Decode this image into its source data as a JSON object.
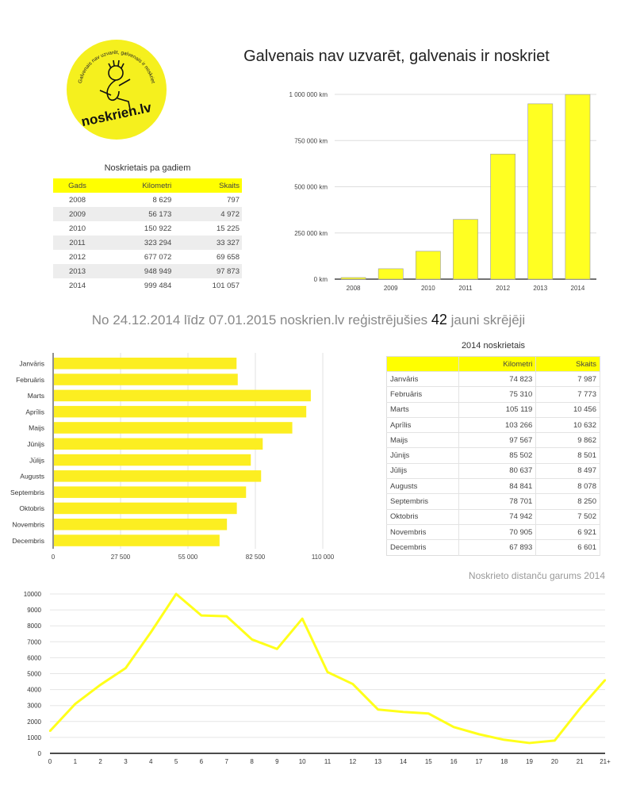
{
  "logo": {
    "text": "noskrien.lv",
    "ring_text": "Galvenais nav uzvarēt, galvenais ir noskriet"
  },
  "title": "Galvenais nav uzvarēt, galvenais ir noskriet",
  "subtitle": {
    "before": "No 24.12.2014 līdz 07.01.2015 noskrien.lv reģistrējušies",
    "count": "42",
    "after": "jauni skrējēji"
  },
  "yearly_table": {
    "title": "Noskrietais pa gadiem",
    "headers": [
      "Gads",
      "Kilometri",
      "Skaits"
    ],
    "rows": [
      [
        "2008",
        "8 629",
        "797"
      ],
      [
        "2009",
        "56 173",
        "4 972"
      ],
      [
        "2010",
        "150 922",
        "15 225"
      ],
      [
        "2011",
        "323 294",
        "33 327"
      ],
      [
        "2012",
        "677 072",
        "69 658"
      ],
      [
        "2013",
        "948 949",
        "97 873"
      ],
      [
        "2014",
        "999 484",
        "101 057"
      ]
    ]
  },
  "monthly_table": {
    "title": "2014 noskrietais",
    "headers": [
      "",
      "Kilometri",
      "Skaits"
    ],
    "rows": [
      [
        "Janvāris",
        "74 823",
        "7 987"
      ],
      [
        "Februāris",
        "75 310",
        "7 773"
      ],
      [
        "Marts",
        "105 119",
        "10 456"
      ],
      [
        "Aprīlis",
        "103 266",
        "10 632"
      ],
      [
        "Maijs",
        "97 567",
        "9 862"
      ],
      [
        "Jūnijs",
        "85 502",
        "8 501"
      ],
      [
        "Jūlijs",
        "80 637",
        "8 497"
      ],
      [
        "Augusts",
        "84 841",
        "8 078"
      ],
      [
        "Septembris",
        "78 701",
        "8 250"
      ],
      [
        "Oktobris",
        "74 942",
        "7 502"
      ],
      [
        "Novembris",
        "70 905",
        "6 921"
      ],
      [
        "Decembris",
        "67 893",
        "6 601"
      ]
    ]
  },
  "colors": {
    "accent": "#ffff00",
    "bar": "#fcee21",
    "line": "#ffff1a"
  },
  "chart_data": [
    {
      "type": "bar",
      "title": "",
      "categories": [
        "2008",
        "2009",
        "2010",
        "2011",
        "2012",
        "2013",
        "2014"
      ],
      "values": [
        8629,
        56173,
        150922,
        323294,
        677072,
        948949,
        999484
      ],
      "ylim": [
        0,
        1000000
      ],
      "yticks": [
        0,
        250000,
        500000,
        750000,
        1000000
      ],
      "ytick_labels": [
        "0 km",
        "250 000 km",
        "500 000 km",
        "750 000 km",
        "1 000 000 km"
      ],
      "grid": true
    },
    {
      "type": "bar",
      "orientation": "horizontal",
      "categories": [
        "Janvāris",
        "Februāris",
        "Marts",
        "Aprīlis",
        "Maijs",
        "Jūnijs",
        "Jūlijs",
        "Augusts",
        "Septembris",
        "Oktobris",
        "Novembris",
        "Decembris"
      ],
      "values": [
        74823,
        75310,
        105119,
        103266,
        97567,
        85502,
        80637,
        84841,
        78701,
        74942,
        70905,
        67893
      ],
      "xlim": [
        0,
        110000
      ],
      "xticks": [
        0,
        27500,
        55000,
        82500,
        110000
      ],
      "xtick_labels": [
        "0",
        "27 500",
        "55 000",
        "82 500",
        "110 000"
      ],
      "grid": true
    },
    {
      "type": "line",
      "title": "Noskrieto distanču garums 2014",
      "categories": [
        "0",
        "1",
        "2",
        "3",
        "4",
        "5",
        "6",
        "7",
        "8",
        "9",
        "10",
        "11",
        "12",
        "13",
        "14",
        "15",
        "16",
        "17",
        "18",
        "19",
        "20",
        "21",
        "21+"
      ],
      "values": [
        1400,
        3100,
        4300,
        5350,
        7600,
        10000,
        8650,
        8600,
        7150,
        6550,
        8450,
        5100,
        4350,
        2750,
        2600,
        2500,
        1650,
        1200,
        850,
        650,
        800,
        2800,
        4600
      ],
      "ylim": [
        0,
        10000
      ],
      "yticks": [
        0,
        1000,
        2000,
        3000,
        4000,
        5000,
        6000,
        7000,
        8000,
        9000,
        10000
      ],
      "grid": true
    }
  ]
}
